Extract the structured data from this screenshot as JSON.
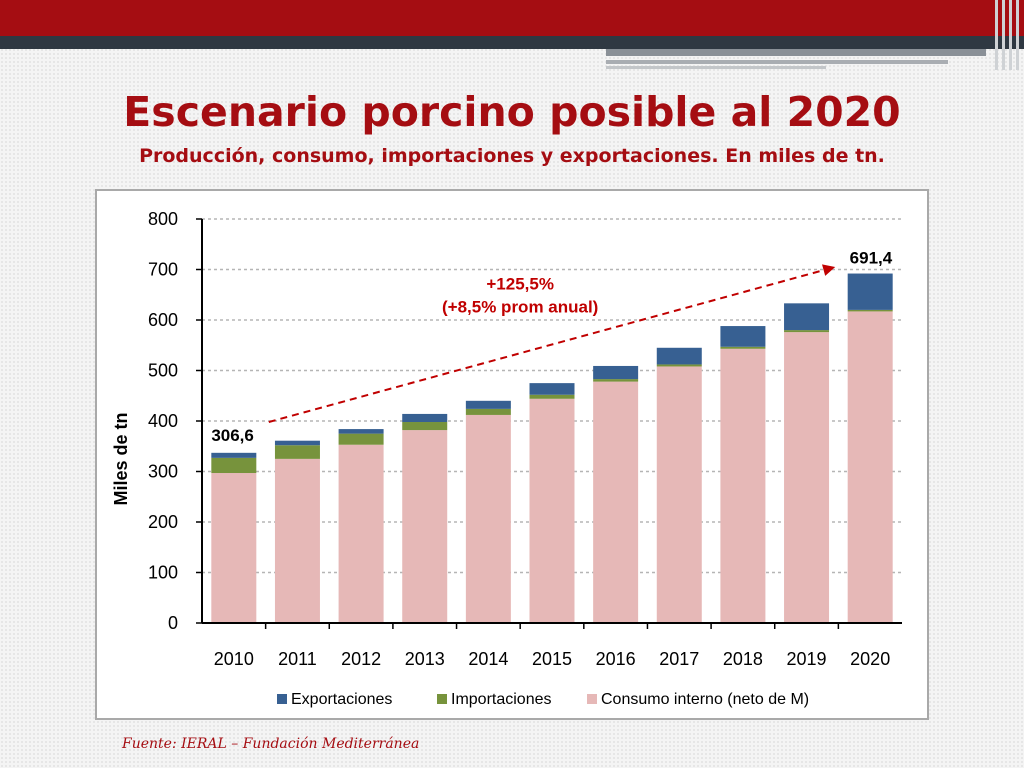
{
  "slide": {
    "title": "Escenario porcino posible al 2020",
    "subtitle": "Producción, consumo, importaciones y exportaciones. En miles de tn.",
    "source": "Fuente: IERAL – Fundación Mediterránea",
    "accent_color": "#a50d12"
  },
  "chart_data": {
    "type": "bar",
    "stacked": true,
    "title": "",
    "xlabel": "",
    "ylabel": "Miles de tn",
    "ylim": [
      0,
      800
    ],
    "yticks": [
      "0",
      "100",
      "200",
      "300",
      "400",
      "500",
      "600",
      "700",
      "800"
    ],
    "grid": true,
    "legend_position": "bottom",
    "categories": [
      "2010",
      "2011",
      "2012",
      "2013",
      "2014",
      "2015",
      "2016",
      "2017",
      "2018",
      "2019",
      "2020"
    ],
    "series": [
      {
        "name": "Consumo interno (neto de M)",
        "color": "#e6b8b7",
        "values": [
          297,
          325,
          353,
          382,
          412,
          444,
          478,
          508,
          543,
          576,
          617
        ]
      },
      {
        "name": "Importaciones",
        "color": "#77933c",
        "values": [
          30,
          27,
          22,
          16,
          12,
          8,
          5,
          4,
          4,
          4,
          3
        ]
      },
      {
        "name": "Exportaciones",
        "color": "#376092",
        "values": [
          10,
          9,
          9,
          16,
          16,
          23,
          26,
          33,
          41,
          53,
          72
        ]
      }
    ],
    "legend_order": [
      "Exportaciones",
      "Importaciones",
      "Consumo interno (neto de M)"
    ],
    "annotations": {
      "start_value": "306,6",
      "end_value": "691,4",
      "growth_line1": "+125,5%",
      "growth_line2": "(+8,5% prom anual)",
      "arrow_start": {
        "x": "2010",
        "y": 398
      },
      "arrow_end": {
        "x": "2020",
        "y": 705
      },
      "arrow_color": "#c00000"
    }
  }
}
